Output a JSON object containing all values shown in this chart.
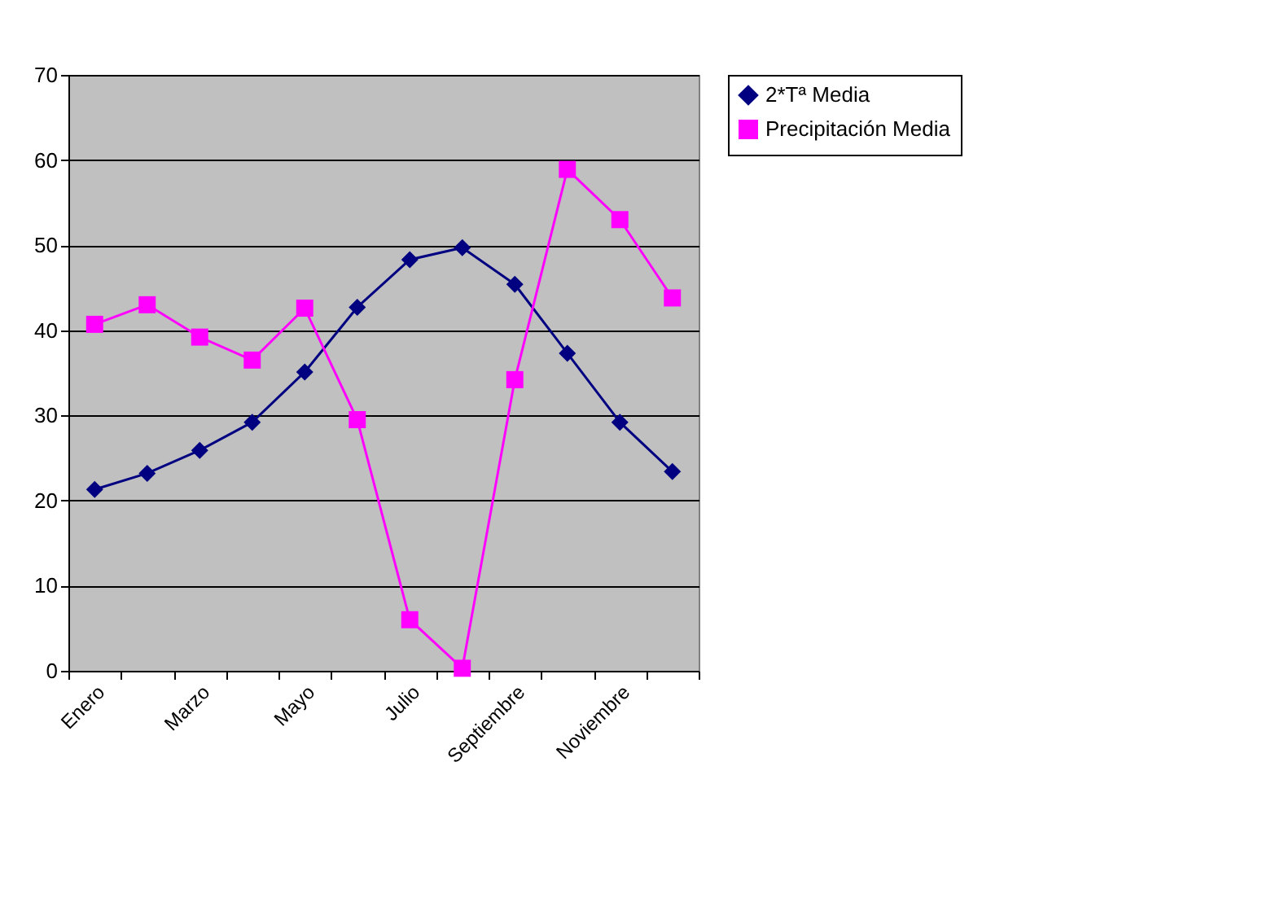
{
  "chart_data": {
    "type": "line",
    "categories": [
      "Enero",
      null,
      "Marzo",
      null,
      "Mayo",
      null,
      "Julio",
      null,
      "Septiembre",
      null,
      "Noviembre",
      null
    ],
    "series": [
      {
        "name": "2*Tª Media",
        "color": "#000080",
        "marker": "diamond",
        "values": [
          21.3,
          23.2,
          25.9,
          29.2,
          35.1,
          42.7,
          48.3,
          49.7,
          45.4,
          37.3,
          29.2,
          23.4
        ]
      },
      {
        "name": "Precipitación Media",
        "color": "#ff00ff",
        "marker": "square",
        "values": [
          40.7,
          43.0,
          39.2,
          36.5,
          42.6,
          29.5,
          6.0,
          0.3,
          34.2,
          58.9,
          53.0,
          43.8
        ]
      }
    ],
    "ylim": [
      0,
      70
    ],
    "yticks": [
      0,
      10,
      20,
      30,
      40,
      50,
      60,
      70
    ],
    "grid": "y",
    "legend": "right",
    "line_style": "solid"
  }
}
